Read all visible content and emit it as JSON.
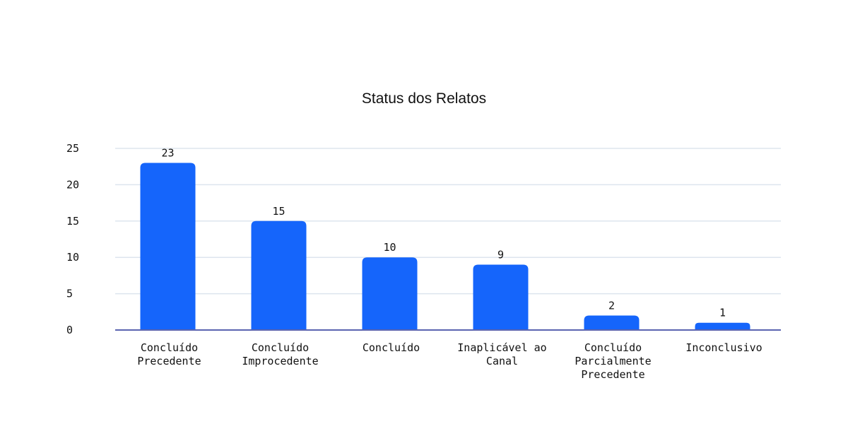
{
  "chart_data": {
    "type": "bar",
    "title": "Status dos Relatos",
    "xlabel": "",
    "ylabel": "",
    "categories": [
      [
        "Concluído",
        "Precedente"
      ],
      [
        "Concluído",
        "Improcedente"
      ],
      [
        "Concluído"
      ],
      [
        "Inaplicável ao",
        "Canal"
      ],
      [
        "Concluído",
        "Parcialmente",
        "Precedente"
      ],
      [
        "Inconclusivo"
      ]
    ],
    "values": [
      23,
      15,
      10,
      9,
      2,
      1
    ],
    "ylim": [
      0,
      25
    ],
    "yticks": [
      0,
      5,
      10,
      15,
      20,
      25
    ],
    "grid": true,
    "legend": "none",
    "colors": {
      "bar": "#1565fb",
      "grid": "#dde5ee",
      "axis": "#5a64b0",
      "text": "#111111"
    }
  }
}
